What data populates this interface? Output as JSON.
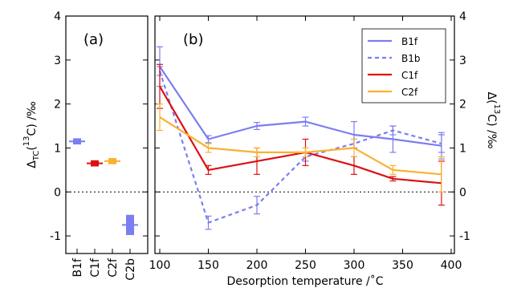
{
  "chart_data": [
    {
      "type": "scatter",
      "panel_label": "(a)",
      "categories": [
        "B1f",
        "C1f",
        "C2f",
        "C2b"
      ],
      "ylabel": {
        "main": "Δ",
        "sub": "TC",
        "mid": "(",
        "sup": "13",
        "tail": "C) /‰"
      },
      "ylim": [
        -1.4,
        4
      ],
      "yticks": [
        -1,
        0,
        1,
        2,
        3,
        4
      ],
      "zero_line": "dotted",
      "points": [
        {
          "category": "B1f",
          "value": 1.15,
          "low": 1.08,
          "high": 1.22,
          "color": "#7b7ef0"
        },
        {
          "category": "C1f",
          "value": 0.65,
          "low": 0.58,
          "high": 0.72,
          "color": "#dd1111"
        },
        {
          "category": "C2f",
          "value": 0.7,
          "low": 0.63,
          "high": 0.77,
          "color": "#fbb12f"
        },
        {
          "category": "C2b",
          "value": -0.75,
          "low": -0.98,
          "high": -0.52,
          "color": "#7b7ef0"
        }
      ]
    },
    {
      "type": "line",
      "panel_label": "(b)",
      "xlabel": "Desorption temperature /˚C",
      "ylabel_right": {
        "main": "Δ",
        "mid": "(",
        "sup": "13",
        "tail": "C) /‰"
      },
      "xlim": [
        100,
        400
      ],
      "ylim": [
        -1.4,
        4
      ],
      "xticks": [
        "100",
        "150",
        "200",
        "250",
        "300",
        "350",
        "400"
      ],
      "yticks": [
        -1,
        0,
        1,
        2,
        3,
        4
      ],
      "zero_line": "dotted",
      "legend_position": "top-right",
      "x": [
        100,
        150,
        200,
        250,
        300,
        340,
        390
      ],
      "series": [
        {
          "name": "B1f",
          "color": "#7b7ef0",
          "dash": "solid",
          "values": [
            2.85,
            1.2,
            1.5,
            1.6,
            1.3,
            1.2,
            1.05
          ],
          "err": [
            0.45,
            0.08,
            0.08,
            0.1,
            0.3,
            0.3,
            0.3
          ]
        },
        {
          "name": "B1b",
          "color": "#7b7ef0",
          "dash": "dashed",
          "values": [
            2.75,
            -0.7,
            -0.3,
            0.8,
            1.1,
            1.4,
            1.1
          ],
          "err": [
            0.1,
            0.15,
            0.2,
            0.1,
            0.1,
            0.1,
            0.2
          ]
        },
        {
          "name": "C1f",
          "color": "#dd1111",
          "dash": "solid",
          "values": [
            2.4,
            0.5,
            0.7,
            0.9,
            0.6,
            0.3,
            0.2
          ],
          "err": [
            0.5,
            0.1,
            0.3,
            0.3,
            0.2,
            0.05,
            0.5
          ]
        },
        {
          "name": "C2f",
          "color": "#fbb12f",
          "dash": "solid",
          "values": [
            1.7,
            1.0,
            0.9,
            0.9,
            1.0,
            0.5,
            0.4
          ],
          "err": [
            0.3,
            0.1,
            0.1,
            0.1,
            0.2,
            0.1,
            0.4
          ]
        }
      ]
    }
  ]
}
